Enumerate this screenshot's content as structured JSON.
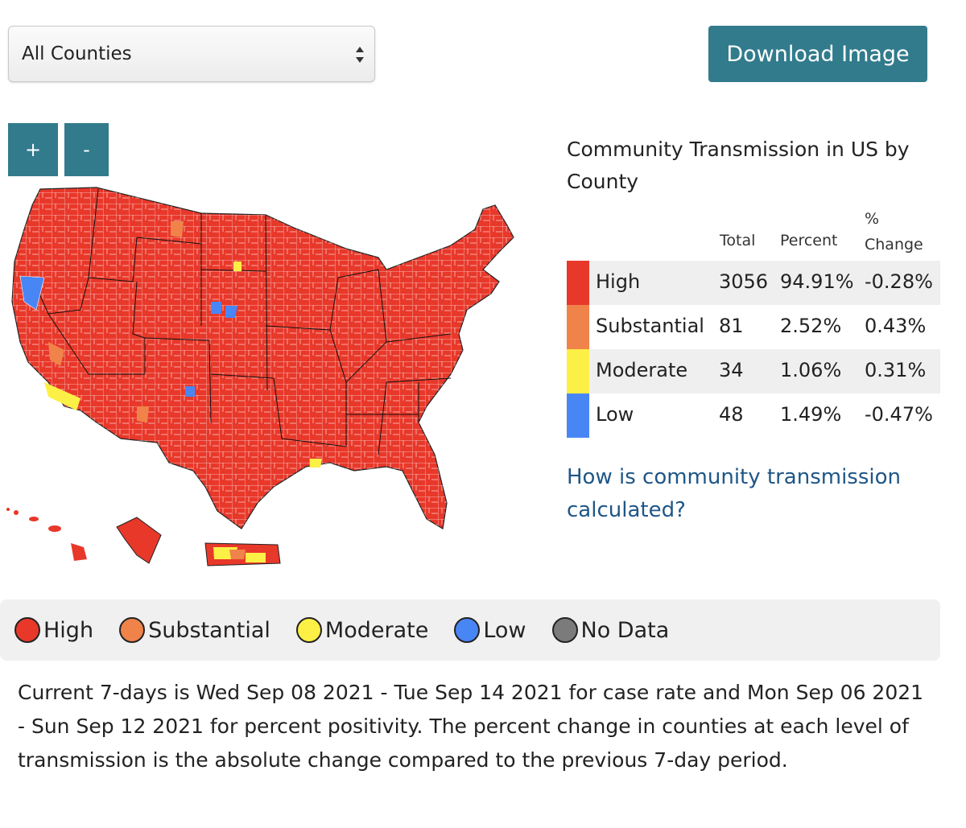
{
  "controls": {
    "region_select": {
      "value": "All Counties"
    },
    "download_label": "Download Image",
    "zoom_in_label": "+",
    "zoom_out_label": "-"
  },
  "summary": {
    "title": "Community Transmission in US by County",
    "columns": {
      "total": "Total",
      "percent": "Percent",
      "change": "% Change"
    },
    "rows": [
      {
        "level": "High",
        "total": "3056",
        "percent": "94.91%",
        "change": "-0.28%",
        "color": "#e8382a"
      },
      {
        "level": "Substantial",
        "total": "81",
        "percent": "2.52%",
        "change": "0.43%",
        "color": "#f0834a"
      },
      {
        "level": "Moderate",
        "total": "34",
        "percent": "1.06%",
        "change": "0.31%",
        "color": "#fcf046"
      },
      {
        "level": "Low",
        "total": "48",
        "percent": "1.49%",
        "change": "-0.47%",
        "color": "#4986f5"
      }
    ],
    "info_link": "How is community transmission calculated?"
  },
  "legend": [
    {
      "label": "High",
      "color": "#e8382a"
    },
    {
      "label": "Substantial",
      "color": "#f0834a"
    },
    {
      "label": "Moderate",
      "color": "#fcf046"
    },
    {
      "label": "Low",
      "color": "#4986f5"
    },
    {
      "label": "No Data",
      "color": "#7b7b7b"
    }
  ],
  "footnote": "Current 7-days is Wed Sep 08 2021 - Tue Sep 14 2021 for case rate and Mon Sep 06 2021 - Sun Sep 12 2021 for percent positivity. The percent change in counties at each level of transmission is the absolute change compared to the previous 7-day period."
}
